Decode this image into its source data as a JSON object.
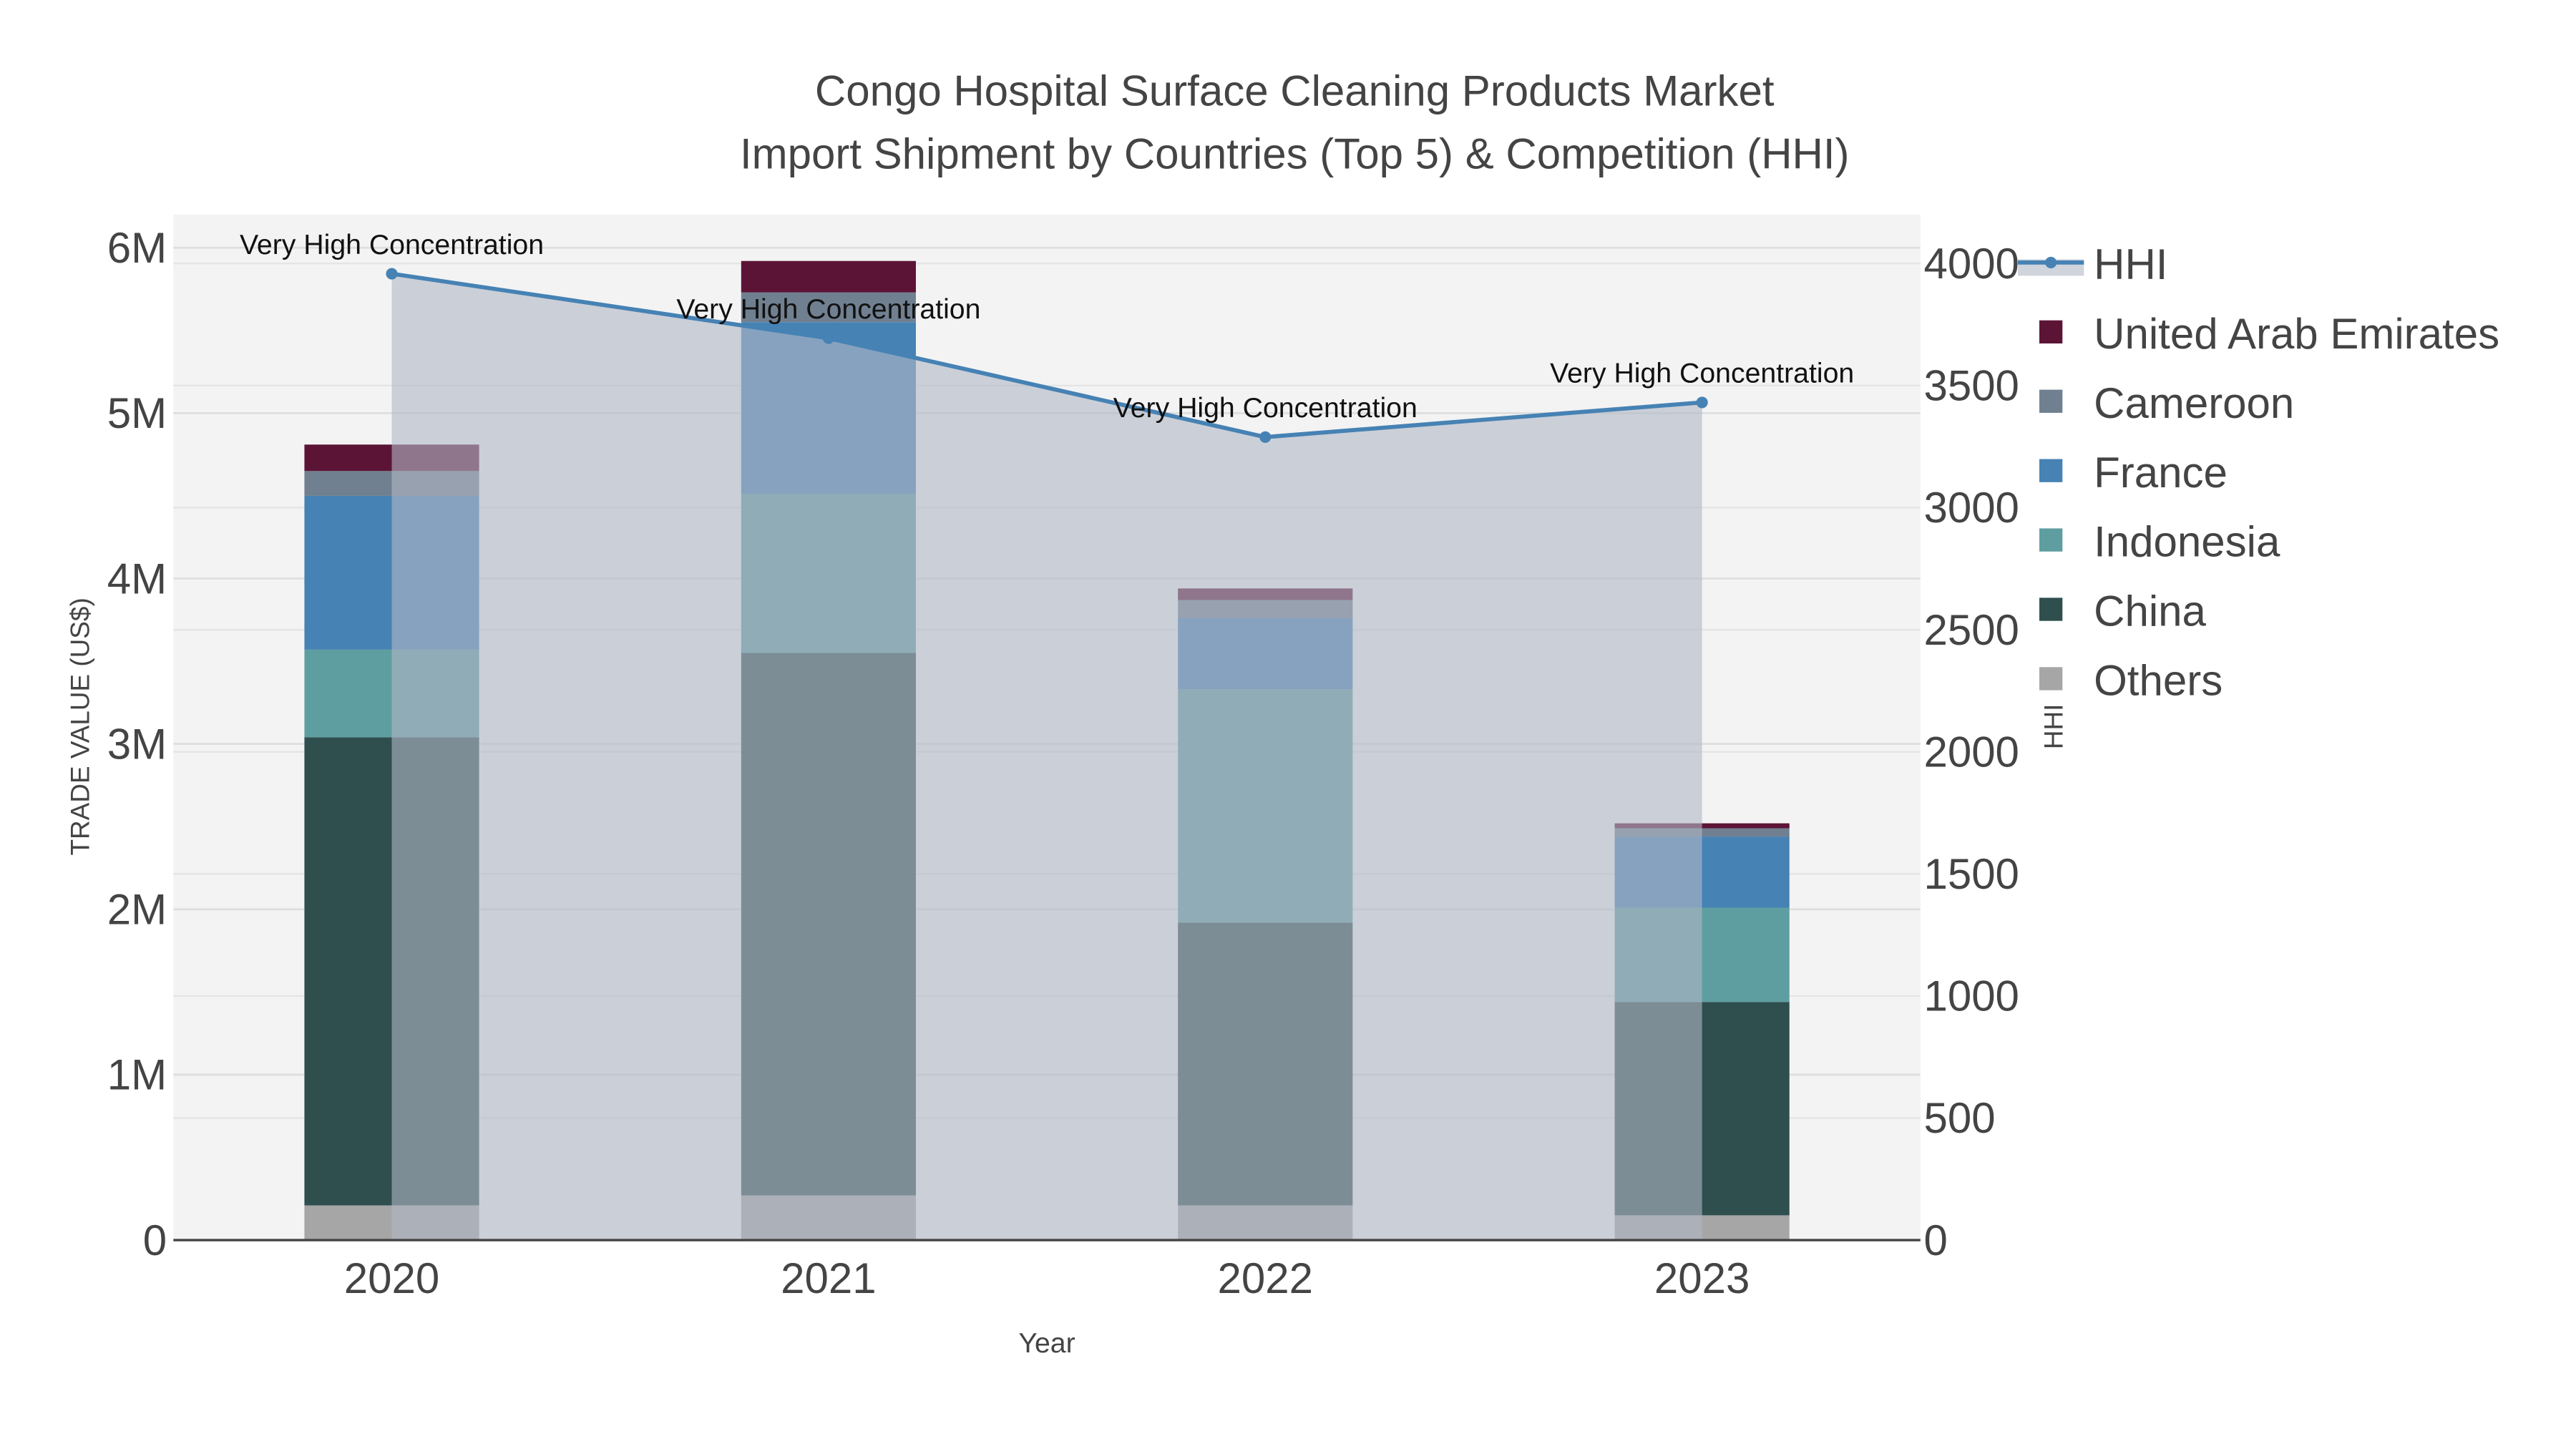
{
  "chart_data": {
    "type": "bar",
    "title": "Congo Hospital Surface Cleaning Products Market",
    "subtitle": "Import Shipment by Countries (Top 5) & Competition (HHI)",
    "xlabel": "Year",
    "ylabel": "TRADE VALUE (US$)",
    "y2label": "HHI",
    "categories": [
      "2020",
      "2021",
      "2022",
      "2023"
    ],
    "ylim": [
      0,
      6200000
    ],
    "y2lim": [
      0,
      4200
    ],
    "yticks": [
      0,
      1000000,
      2000000,
      3000000,
      4000000,
      5000000,
      6000000
    ],
    "ytick_labels": [
      "0",
      "1M",
      "2M",
      "3M",
      "4M",
      "5M",
      "6M"
    ],
    "y2ticks": [
      0,
      500,
      1000,
      1500,
      2000,
      2500,
      3000,
      3500,
      4000
    ],
    "y2tick_labels": [
      "0",
      "500",
      "1000",
      "1500",
      "2000",
      "2500",
      "3000",
      "3500",
      "4000"
    ],
    "grid": true,
    "legend_placement": "right",
    "series": [
      {
        "name": "Others",
        "color": "#a6a6a6",
        "values": [
          210000,
          270000,
          210000,
          150000
        ]
      },
      {
        "name": "China",
        "color": "#2f4f4f",
        "values": [
          2830000,
          3280000,
          1710000,
          1290000
        ]
      },
      {
        "name": "Indonesia",
        "color": "#5f9ea0",
        "values": [
          530000,
          960000,
          1410000,
          570000
        ]
      },
      {
        "name": "France",
        "color": "#4682b4",
        "values": [
          930000,
          1040000,
          430000,
          430000
        ]
      },
      {
        "name": "Cameroon",
        "color": "#708090",
        "values": [
          150000,
          180000,
          110000,
          50000
        ]
      },
      {
        "name": "United Arab Emirates",
        "color": "#5c1436",
        "values": [
          160000,
          190000,
          70000,
          30000
        ]
      }
    ],
    "hhi": {
      "name": "HHI",
      "color": "#4682b4",
      "values": [
        3958,
        3694,
        3289,
        3431
      ],
      "annotations": [
        "Very High Concentration",
        "Very High Concentration",
        "Very High Concentration",
        "Very High Concentration"
      ]
    },
    "legend_order": [
      "HHI",
      "United Arab Emirates",
      "Cameroon",
      "France",
      "Indonesia",
      "China",
      "Others"
    ]
  }
}
